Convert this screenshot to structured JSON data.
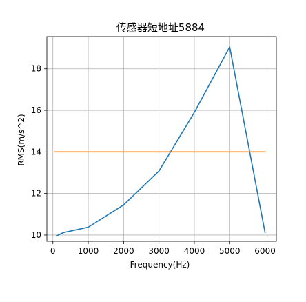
{
  "chart_data": {
    "type": "line",
    "title": "传感器短地址5884",
    "xlabel": "Frequency(Hz)",
    "ylabel": "RMS(m/s^2)",
    "xlim": [
      -170,
      6320
    ],
    "ylim": [
      9.7,
      19.55
    ],
    "xticks": [
      0,
      1000,
      2000,
      3000,
      4000,
      5000,
      6000
    ],
    "yticks": [
      10,
      12,
      14,
      16,
      18
    ],
    "grid": true,
    "series": [
      {
        "color": "#1f77b4",
        "x": [
          100,
          300,
          1000,
          2000,
          3000,
          4000,
          5000,
          6000
        ],
        "y": [
          9.96,
          10.12,
          10.38,
          11.45,
          13.08,
          15.9,
          19.05,
          10.12
        ]
      },
      {
        "color": "#ff7f0e",
        "x": [
          50,
          6000
        ],
        "y": [
          14.0,
          14.0
        ]
      }
    ]
  }
}
